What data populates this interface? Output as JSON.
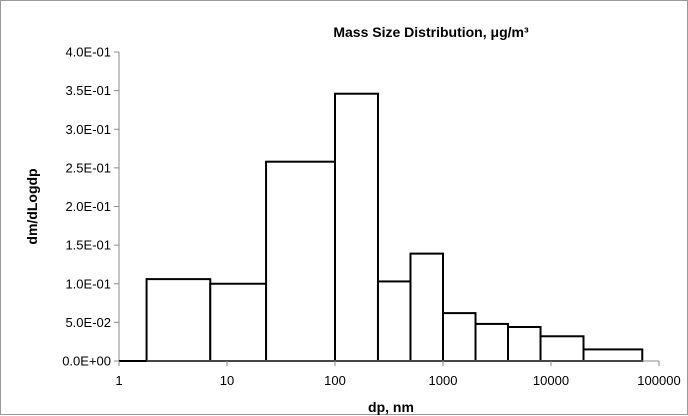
{
  "chart_data": {
    "type": "bar",
    "title": "Mass Size Distribution, μg/m³",
    "xlabel": "dp, nm",
    "ylabel": "dm/dLogdp",
    "x_scale": "log",
    "xlim": [
      1,
      100000
    ],
    "ylim": [
      0,
      0.4
    ],
    "x_tick_values": [
      1,
      10,
      100,
      1000,
      10000,
      100000
    ],
    "x_tick_labels": [
      "1",
      "10",
      "100",
      "1000",
      "10000",
      "100000"
    ],
    "y_tick_values": [
      0,
      0.05,
      0.1,
      0.15,
      0.2,
      0.25,
      0.3,
      0.35,
      0.4
    ],
    "y_tick_labels": [
      "0.0E+00",
      "5.0E-02",
      "1.0E-01",
      "1.5E-01",
      "2.0E-01",
      "2.5E-01",
      "3.0E-01",
      "3.5E-01",
      "4.0E-01"
    ],
    "grid": false,
    "bins": [
      {
        "lower": 1.8,
        "upper": 7,
        "value": 0.106
      },
      {
        "lower": 7,
        "upper": 23,
        "value": 0.1
      },
      {
        "lower": 23,
        "upper": 100,
        "value": 0.258
      },
      {
        "lower": 100,
        "upper": 250,
        "value": 0.346
      },
      {
        "lower": 250,
        "upper": 500,
        "value": 0.103
      },
      {
        "lower": 500,
        "upper": 1000,
        "value": 0.139
      },
      {
        "lower": 1000,
        "upper": 2000,
        "value": 0.062
      },
      {
        "lower": 2000,
        "upper": 4000,
        "value": 0.048
      },
      {
        "lower": 4000,
        "upper": 8000,
        "value": 0.044
      },
      {
        "lower": 8000,
        "upper": 20000,
        "value": 0.032
      },
      {
        "lower": 20000,
        "upper": 70000,
        "value": 0.015
      }
    ]
  }
}
